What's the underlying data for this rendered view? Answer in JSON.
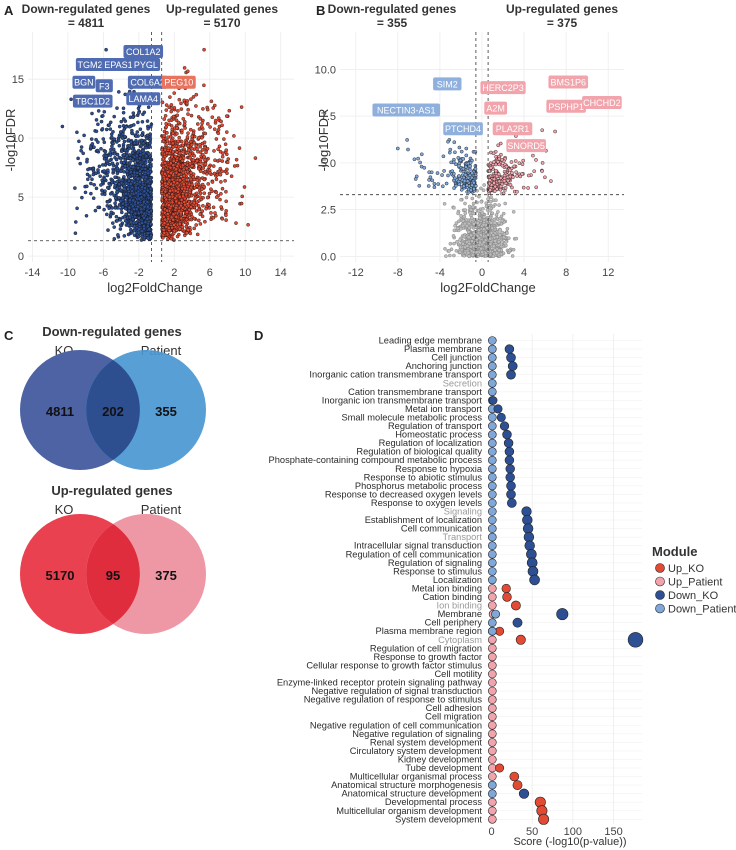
{
  "panel_letters": {
    "a": "A",
    "b": "B",
    "c": "C",
    "d": "D"
  },
  "colors": {
    "down_ko": "#2d4f94",
    "up_ko": "#e24a33",
    "down_patient": "#7fa7d9",
    "up_patient": "#f2a3ab",
    "grey": "#8c8c8c",
    "venn_ko_down": "#4d63a3",
    "venn_pat_down": "#4a97d1",
    "venn_ko_up": "#ea4150",
    "venn_pat_up": "#ee98a6"
  },
  "chart_data": [
    {
      "type": "scatter",
      "panel": "A",
      "left_header": [
        "Down-regulated genes",
        "= 4811"
      ],
      "right_header": [
        "Up-regulated genes",
        "= 5170"
      ],
      "xlabel": "log2FoldChange",
      "ylabel": "-log10FDR",
      "xlim": [
        -14.5,
        15.5
      ],
      "ylim": [
        -0.5,
        19
      ],
      "xticks": [
        -14,
        -10,
        -6,
        -2,
        2,
        6,
        10,
        14
      ],
      "yticks": [
        0,
        5,
        10,
        15
      ],
      "fc_threshold": 0.58,
      "fdr_threshold": 1.3,
      "down_count": 4811,
      "up_count": 5170,
      "labels": [
        {
          "text": "COL1A2",
          "x": -1.5,
          "y": 17.3,
          "side": "down"
        },
        {
          "text": "TGM2",
          "x": -7.5,
          "y": 16.2,
          "side": "down"
        },
        {
          "text": "EPAS1",
          "x": -4.3,
          "y": 16.2,
          "side": "down"
        },
        {
          "text": "PYGL",
          "x": -1.2,
          "y": 16.2,
          "side": "down"
        },
        {
          "text": "BGN",
          "x": -8.2,
          "y": 14.7,
          "side": "down"
        },
        {
          "text": "F3",
          "x": -5.9,
          "y": 14.4,
          "side": "down"
        },
        {
          "text": "COL6A2",
          "x": -1.0,
          "y": 14.7,
          "side": "down"
        },
        {
          "text": "TBC1D2",
          "x": -7.2,
          "y": 13.1,
          "side": "down"
        },
        {
          "text": "LAMA4",
          "x": -1.5,
          "y": 13.3,
          "side": "down"
        },
        {
          "text": "PEG10",
          "x": 2.5,
          "y": 14.7,
          "side": "up"
        }
      ]
    },
    {
      "type": "scatter",
      "panel": "B",
      "left_header": [
        "Down-regulated genes",
        "= 355"
      ],
      "right_header": [
        "Up-regulated genes",
        "= 375"
      ],
      "xlabel": "log2FoldChange",
      "ylabel": "-log10FDR",
      "xlim": [
        -13.5,
        13.5
      ],
      "ylim": [
        -0.3,
        12
      ],
      "xticks": [
        -12,
        -8,
        -4,
        0,
        4,
        8,
        12
      ],
      "yticks": [
        0.0,
        2.5,
        5.0,
        7.5,
        10.0
      ],
      "ytick_labels": [
        "0.0",
        "2.5",
        "5.0",
        "7.5",
        "10.0"
      ],
      "fc_threshold": 0.58,
      "fdr_threshold": 3.3,
      "down_count": 355,
      "up_count": 375,
      "labels": [
        {
          "text": "SIM2",
          "x": -3.3,
          "y": 9.2,
          "side": "down"
        },
        {
          "text": "NECTIN3-AS1",
          "x": -7.2,
          "y": 7.8,
          "side": "down"
        },
        {
          "text": "PTCHD4",
          "x": -1.8,
          "y": 6.8,
          "side": "down"
        },
        {
          "text": "HERC2P3",
          "x": 2.0,
          "y": 9.0,
          "side": "up"
        },
        {
          "text": "A2M",
          "x": 1.3,
          "y": 7.9,
          "side": "up"
        },
        {
          "text": "BMS1P6",
          "x": 8.2,
          "y": 9.3,
          "side": "up"
        },
        {
          "text": "PSPHP1",
          "x": 8.0,
          "y": 8.0,
          "side": "up"
        },
        {
          "text": "CHCHD2",
          "x": 11.4,
          "y": 8.2,
          "side": "up"
        },
        {
          "text": "PLA2R1",
          "x": 2.9,
          "y": 6.8,
          "side": "up"
        },
        {
          "text": "SNORD5",
          "x": 4.2,
          "y": 5.9,
          "side": "up"
        }
      ]
    },
    {
      "type": "dot",
      "panel": "D",
      "xlabel": "Score (-log10(p-value))",
      "xlim": [
        -8,
        185
      ],
      "xticks": [
        0,
        50,
        100,
        150
      ],
      "legend_title": "Module",
      "legend": [
        {
          "name": "Up_KO",
          "color": "#e24a33"
        },
        {
          "name": "Up_Patient",
          "color": "#f2a3ab"
        },
        {
          "name": "Down_KO",
          "color": "#2d4f94"
        },
        {
          "name": "Down_Patient",
          "color": "#7fa7d9"
        }
      ],
      "categories": [
        "Leading edge membrane",
        "Plasma membrane",
        "Cell junction",
        "Anchoring junction",
        "Inorganic cation transmembrane transport",
        "Secretion",
        "Cation transmembrane transport",
        "Inorganic ion transmembrane transport",
        "Metal ion transport",
        "Small molecule metabolic process",
        "Regulation of transport",
        "Homeostatic process",
        "Regulation of localization",
        "Regulation of biological quality",
        "Phosphate-containing compound metabolic process",
        "Response to hypoxia",
        "Response to abiotic stimulus",
        "Phosphorus metabolic process",
        "Response to decreased oxygen levels",
        "Response to oxygen levels",
        "Signaling",
        "Establishment of localization",
        "Cell communication",
        "Transport",
        "Intracellular signal transduction",
        "Regulation of cell communication",
        "Regulation of signaling",
        "Response to stimulus",
        "Localization",
        "Metal ion binding",
        "Cation binding",
        "Ion binding",
        "Membrane",
        "Cell periphery",
        "Plasma membrane region",
        "Cytoplasm",
        "Regulation of cell migration",
        "Response to growth factor",
        "Cellular response to growth factor stimulus",
        "Cell motility",
        "Enzyme-linked receptor protein signaling pathway",
        "Negative regulation of signal transduction",
        "Negative regulation of response to stimulus",
        "Cell adhesion",
        "Cell migration",
        "Negative regulation of cell communication",
        "Negative regulation of signaling",
        "Renal system development",
        "Circulatory system development",
        "Kidney development",
        "Tube development",
        "Multicellular organismal process",
        "Anatomical structure morphogenesis",
        "Anatomical structure development",
        "Developmental process",
        "Multicellular organism development",
        "System development"
      ],
      "faded_categories": [
        "Secretion",
        "Signaling",
        "Transport",
        "Ion binding",
        "Cytoplasm"
      ],
      "points": [
        {
          "cat": 0,
          "module": "Down_Patient",
          "score": 1
        },
        {
          "cat": 1,
          "module": "Down_Patient",
          "score": 1
        },
        {
          "cat": 1,
          "module": "Down_KO",
          "score": 22
        },
        {
          "cat": 2,
          "module": "Down_Patient",
          "score": 1
        },
        {
          "cat": 2,
          "module": "Down_KO",
          "score": 24
        },
        {
          "cat": 3,
          "module": "Down_Patient",
          "score": 1
        },
        {
          "cat": 3,
          "module": "Down_KO",
          "score": 26
        },
        {
          "cat": 4,
          "module": "Down_Patient",
          "score": 1
        },
        {
          "cat": 4,
          "module": "Down_KO",
          "score": 24
        },
        {
          "cat": 5,
          "module": "Down_Patient",
          "score": 1
        },
        {
          "cat": 6,
          "module": "Down_Patient",
          "score": 1
        },
        {
          "cat": 7,
          "module": "Down_Patient",
          "score": 1
        },
        {
          "cat": 7,
          "module": "Down_KO",
          "score": 2
        },
        {
          "cat": 8,
          "module": "Down_Patient",
          "score": 1
        },
        {
          "cat": 8,
          "module": "Down_KO",
          "score": 8
        },
        {
          "cat": 9,
          "module": "Down_Patient",
          "score": 1
        },
        {
          "cat": 9,
          "module": "Down_KO",
          "score": 12
        },
        {
          "cat": 10,
          "module": "Down_Patient",
          "score": 1
        },
        {
          "cat": 10,
          "module": "Down_KO",
          "score": 16
        },
        {
          "cat": 11,
          "module": "Down_Patient",
          "score": 1
        },
        {
          "cat": 11,
          "module": "Down_KO",
          "score": 19
        },
        {
          "cat": 12,
          "module": "Down_Patient",
          "score": 1
        },
        {
          "cat": 12,
          "module": "Down_KO",
          "score": 21
        },
        {
          "cat": 13,
          "module": "Down_Patient",
          "score": 1
        },
        {
          "cat": 13,
          "module": "Down_KO",
          "score": 22
        },
        {
          "cat": 14,
          "module": "Down_Patient",
          "score": 1
        },
        {
          "cat": 14,
          "module": "Down_KO",
          "score": 22
        },
        {
          "cat": 15,
          "module": "Down_Patient",
          "score": 1
        },
        {
          "cat": 15,
          "module": "Down_KO",
          "score": 23
        },
        {
          "cat": 16,
          "module": "Down_Patient",
          "score": 1
        },
        {
          "cat": 16,
          "module": "Down_KO",
          "score": 23
        },
        {
          "cat": 17,
          "module": "Down_Patient",
          "score": 1
        },
        {
          "cat": 17,
          "module": "Down_KO",
          "score": 24
        },
        {
          "cat": 18,
          "module": "Down_Patient",
          "score": 1
        },
        {
          "cat": 18,
          "module": "Down_KO",
          "score": 24
        },
        {
          "cat": 19,
          "module": "Down_Patient",
          "score": 1
        },
        {
          "cat": 19,
          "module": "Down_KO",
          "score": 25
        },
        {
          "cat": 20,
          "module": "Down_Patient",
          "score": 1
        },
        {
          "cat": 20,
          "module": "Down_KO",
          "score": 43
        },
        {
          "cat": 21,
          "module": "Down_Patient",
          "score": 1
        },
        {
          "cat": 21,
          "module": "Down_KO",
          "score": 44
        },
        {
          "cat": 22,
          "module": "Down_Patient",
          "score": 1
        },
        {
          "cat": 22,
          "module": "Down_KO",
          "score": 45
        },
        {
          "cat": 23,
          "module": "Down_Patient",
          "score": 1
        },
        {
          "cat": 23,
          "module": "Down_KO",
          "score": 46
        },
        {
          "cat": 24,
          "module": "Down_Patient",
          "score": 1
        },
        {
          "cat": 24,
          "module": "Down_KO",
          "score": 47
        },
        {
          "cat": 25,
          "module": "Down_Patient",
          "score": 1
        },
        {
          "cat": 25,
          "module": "Down_KO",
          "score": 49
        },
        {
          "cat": 26,
          "module": "Down_Patient",
          "score": 1
        },
        {
          "cat": 26,
          "module": "Down_KO",
          "score": 50
        },
        {
          "cat": 27,
          "module": "Down_Patient",
          "score": 1
        },
        {
          "cat": 27,
          "module": "Down_KO",
          "score": 51
        },
        {
          "cat": 28,
          "module": "Down_Patient",
          "score": 1
        },
        {
          "cat": 28,
          "module": "Down_KO",
          "score": 53
        },
        {
          "cat": 29,
          "module": "Up_Patient",
          "score": 1
        },
        {
          "cat": 29,
          "module": "Up_KO",
          "score": 18
        },
        {
          "cat": 30,
          "module": "Up_Patient",
          "score": 1
        },
        {
          "cat": 30,
          "module": "Up_KO",
          "score": 19
        },
        {
          "cat": 31,
          "module": "Up_Patient",
          "score": 1
        },
        {
          "cat": 31,
          "module": "Up_KO",
          "score": 30
        },
        {
          "cat": 32,
          "module": "Up_Patient",
          "score": 2
        },
        {
          "cat": 32,
          "module": "Down_Patient",
          "score": 5
        },
        {
          "cat": 32,
          "module": "Down_KO",
          "score": 87
        },
        {
          "cat": 33,
          "module": "Down_Patient",
          "score": 1
        },
        {
          "cat": 33,
          "module": "Down_KO",
          "score": 32
        },
        {
          "cat": 34,
          "module": "Up_Patient",
          "score": 1
        },
        {
          "cat": 34,
          "module": "Up_KO",
          "score": 10
        },
        {
          "cat": 34,
          "module": "Down_Patient",
          "score": 1
        },
        {
          "cat": 35,
          "module": "Up_Patient",
          "score": 1
        },
        {
          "cat": 35,
          "module": "Up_KO",
          "score": 36
        },
        {
          "cat": 35,
          "module": "Down_KO",
          "score": 177
        },
        {
          "cat": 36,
          "module": "Up_Patient",
          "score": 1
        },
        {
          "cat": 37,
          "module": "Up_Patient",
          "score": 1
        },
        {
          "cat": 38,
          "module": "Up_Patient",
          "score": 1
        },
        {
          "cat": 39,
          "module": "Up_Patient",
          "score": 1
        },
        {
          "cat": 40,
          "module": "Up_Patient",
          "score": 1
        },
        {
          "cat": 41,
          "module": "Up_Patient",
          "score": 1
        },
        {
          "cat": 42,
          "module": "Up_Patient",
          "score": 1
        },
        {
          "cat": 43,
          "module": "Up_Patient",
          "score": 1
        },
        {
          "cat": 44,
          "module": "Up_Patient",
          "score": 1
        },
        {
          "cat": 45,
          "module": "Up_Patient",
          "score": 1
        },
        {
          "cat": 46,
          "module": "Up_Patient",
          "score": 1
        },
        {
          "cat": 47,
          "module": "Up_Patient",
          "score": 1
        },
        {
          "cat": 48,
          "module": "Up_Patient",
          "score": 1
        },
        {
          "cat": 49,
          "module": "Up_Patient",
          "score": 1
        },
        {
          "cat": 50,
          "module": "Up_Patient",
          "score": 1
        },
        {
          "cat": 50,
          "module": "Up_KO",
          "score": 10
        },
        {
          "cat": 51,
          "module": "Up_Patient",
          "score": 1
        },
        {
          "cat": 51,
          "module": "Up_KO",
          "score": 28
        },
        {
          "cat": 52,
          "module": "Down_Patient",
          "score": 1
        },
        {
          "cat": 52,
          "module": "Up_KO",
          "score": 32
        },
        {
          "cat": 53,
          "module": "Down_Patient",
          "score": 1
        },
        {
          "cat": 53,
          "module": "Down_KO",
          "score": 40
        },
        {
          "cat": 54,
          "module": "Up_Patient",
          "score": 1
        },
        {
          "cat": 54,
          "module": "Up_KO",
          "score": 60
        },
        {
          "cat": 55,
          "module": "Up_Patient",
          "score": 1
        },
        {
          "cat": 55,
          "module": "Up_KO",
          "score": 62
        },
        {
          "cat": 56,
          "module": "Up_Patient",
          "score": 1
        },
        {
          "cat": 56,
          "module": "Up_KO",
          "score": 64
        }
      ]
    }
  ],
  "venn": {
    "down": {
      "title": "Down-regulated genes",
      "left_label": "KO",
      "right_label": "Patient",
      "left_only": "4811",
      "overlap": "202",
      "right_only": "355"
    },
    "up": {
      "title": "Up-regulated genes",
      "left_label": "KO",
      "right_label": "Patient",
      "left_only": "5170",
      "overlap": "95",
      "right_only": "375"
    }
  }
}
